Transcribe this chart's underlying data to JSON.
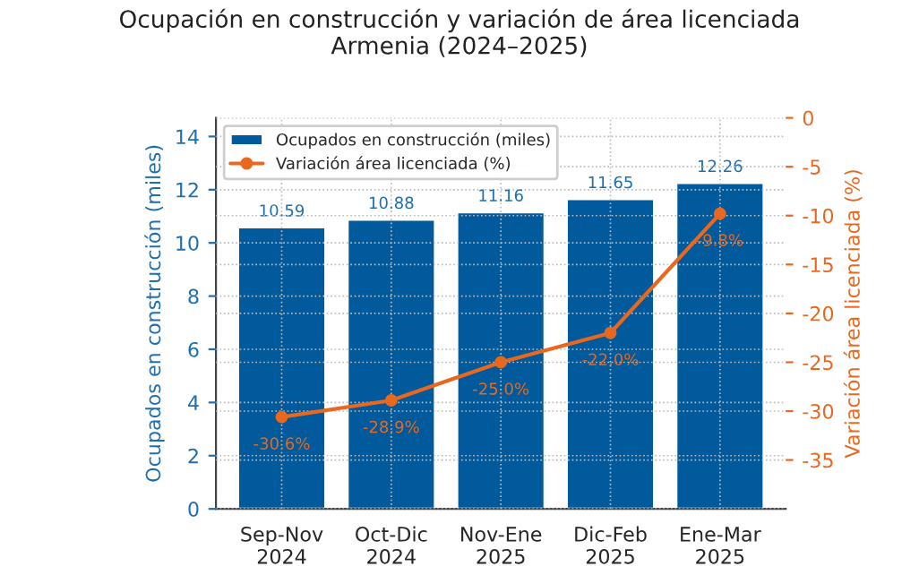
{
  "chart_data": {
    "type": "bar",
    "title": "Ocupación en construcción y variación de área licenciada\nArmenia (2024–2025)",
    "categories": [
      "Sep-Nov\n2024",
      "Oct-Dic\n2024",
      "Nov-Ene\n2025",
      "Dic-Feb\n2025",
      "Ene-Mar\n2025"
    ],
    "series": [
      {
        "name": "Ocupados en construcción (miles)",
        "color": "#005a9c",
        "values": [
          10.59,
          10.88,
          11.16,
          11.65,
          12.26
        ],
        "value_labels": [
          "10.59",
          "10.88",
          "11.16",
          "11.65",
          "12.26"
        ]
      },
      {
        "name": "Variación área licenciada (%)",
        "type": "line",
        "axis": "y2",
        "color": "#e8681f",
        "values": [
          -30.6,
          -28.9,
          -25.0,
          -22.0,
          -9.8
        ],
        "value_labels": [
          "-30.6%",
          "-28.9%",
          "-25.0%",
          "-22.0%",
          "-9.8%"
        ]
      }
    ],
    "ylabel": "Ocupados en construcción (miles)",
    "y2label": "Variación área licenciada (%)",
    "ylim": [
      0,
      14.7
    ],
    "yticks": [
      0,
      2,
      4,
      6,
      8,
      10,
      12,
      14
    ],
    "y2lim": [
      -40,
      0
    ],
    "y2ticks": [
      -35,
      -30,
      -25,
      -20,
      -15,
      -10,
      -5,
      0
    ],
    "grid": true,
    "legend": "top left",
    "marker": "circle",
    "line_style": "solid"
  }
}
